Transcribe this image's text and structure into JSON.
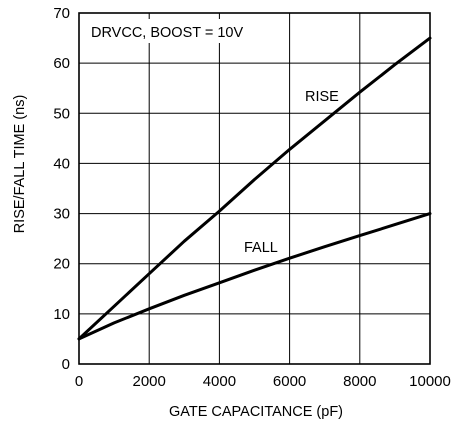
{
  "chart_data": {
    "type": "line",
    "xlabel": "GATE CAPACITANCE (pF)",
    "ylabel": "RISE/FALL TIME (ns)",
    "xlim": [
      0,
      10000
    ],
    "ylim": [
      0,
      70
    ],
    "xticks": [
      0,
      2000,
      4000,
      6000,
      8000,
      10000
    ],
    "yticks": [
      0,
      10,
      20,
      30,
      40,
      50,
      60,
      70
    ],
    "grid": true,
    "annotations": [
      "DRVCC, BOOST = 10V",
      "RISE",
      "FALL"
    ],
    "series": [
      {
        "name": "RISE",
        "x": [
          0,
          1000,
          2000,
          3000,
          4000,
          5000,
          6000,
          7000,
          8000,
          9000,
          10000
        ],
        "y": [
          5,
          11.5,
          18,
          24.5,
          30.5,
          36.8,
          42.8,
          48.5,
          54.2,
          59.7,
          65
        ]
      },
      {
        "name": "FALL",
        "x": [
          0,
          1000,
          2000,
          3000,
          4000,
          5000,
          6000,
          7000,
          8000,
          9000,
          10000
        ],
        "y": [
          5,
          8.2,
          11,
          13.7,
          16.2,
          18.7,
          21.1,
          23.4,
          25.6,
          27.8,
          30
        ]
      }
    ]
  }
}
